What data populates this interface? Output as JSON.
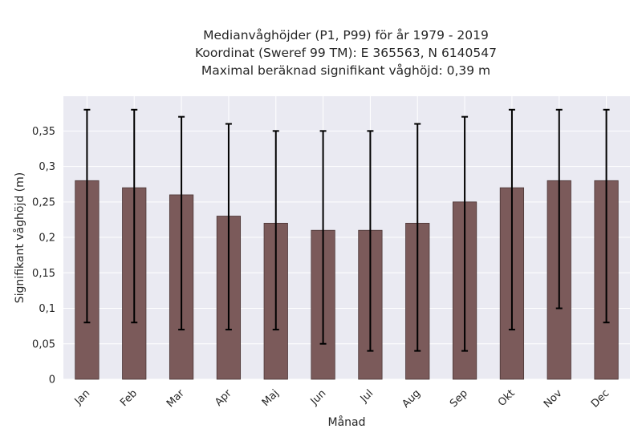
{
  "chart_data": {
    "type": "bar",
    "title_lines": [
      "Medianvåghöjder (P1, P99) för år 1979 - 2019",
      "Koordinat (Sweref 99 TM): E 365563, N 6140547",
      "Maximal beräknad signifikant våghöjd: 0,39 m"
    ],
    "xlabel": "Månad",
    "ylabel": "Signifikant våghöjd (m)",
    "categories": [
      "Jan",
      "Feb",
      "Mar",
      "Apr",
      "Maj",
      "Jun",
      "Jul",
      "Aug",
      "Sep",
      "Okt",
      "Nov",
      "Dec"
    ],
    "series": [
      {
        "values": [
          0.28,
          0.27,
          0.26,
          0.23,
          0.22,
          0.21,
          0.21,
          0.22,
          0.25,
          0.27,
          0.28,
          0.28
        ],
        "p1": [
          0.08,
          0.08,
          0.07,
          0.07,
          0.07,
          0.05,
          0.04,
          0.04,
          0.04,
          0.07,
          0.1,
          0.08
        ],
        "p99": [
          0.38,
          0.38,
          0.37,
          0.36,
          0.35,
          0.35,
          0.35,
          0.36,
          0.37,
          0.38,
          0.38,
          0.38
        ]
      }
    ],
    "y_ticks": [
      0,
      0.05,
      0.1,
      0.15,
      0.2,
      0.25,
      0.3,
      0.35
    ],
    "y_tick_labels": [
      "0",
      "0,05",
      "0,1",
      "0,15",
      "0,2",
      "0,25",
      "0,3",
      "0,35"
    ],
    "ylim": [
      0,
      0.399
    ],
    "grid": true,
    "colors": {
      "bar": "#7b5a5a",
      "bar_edge": "#4a3535",
      "error_bar": "#000000",
      "plot_bg": "#eaeaf2",
      "grid": "#ffffff"
    }
  }
}
